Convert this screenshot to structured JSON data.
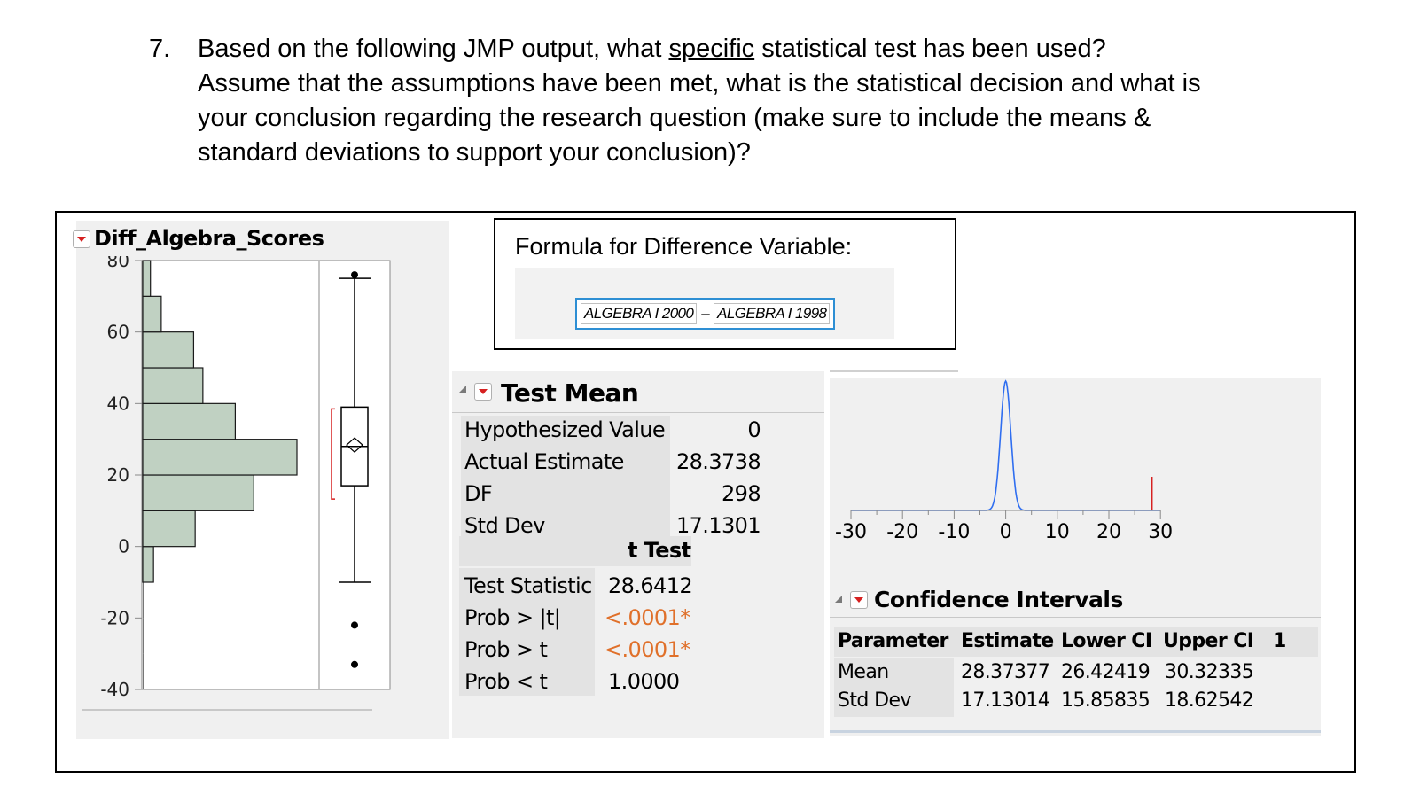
{
  "question": {
    "number": "7.",
    "line1_before": "Based on the following JMP output, what ",
    "line1_underlined": "specific",
    "line1_after": " statistical test has been used?",
    "line2": "Assume that the assumptions have been met, what is the statistical decision and what is",
    "line3": "your conclusion regarding the research question (make sure to include the means &",
    "line4": "standard deviations to support your conclusion)?"
  },
  "histogram_panel": {
    "title": "Diff_Algebra_Scores",
    "y_ticks": [
      "80",
      "60",
      "40",
      "20",
      "0",
      "-20",
      "-40"
    ]
  },
  "formula": {
    "title": "Formula for Difference Variable:",
    "term1": "ALGEBRA I 2000",
    "operator": "–",
    "term2": "ALGEBRA I 1998"
  },
  "test_mean": {
    "title": "Test Mean",
    "rows": [
      {
        "label": "Hypothesized Value",
        "value": "0"
      },
      {
        "label": "Actual Estimate",
        "value": "28.3738"
      },
      {
        "label": "DF",
        "value": "298"
      },
      {
        "label": "Std Dev",
        "value": "17.1301"
      }
    ],
    "t_test_header": "t Test",
    "t_rows": [
      {
        "label": "Test Statistic",
        "value": "28.6412"
      },
      {
        "label": "Prob > |t|",
        "value": "<.0001*"
      },
      {
        "label": "Prob > t",
        "value": "<.0001*"
      },
      {
        "label": "Prob < t",
        "value": "1.0000"
      }
    ]
  },
  "density_axis": {
    "ticks": [
      "-30",
      "-20",
      "-10",
      "0",
      "10",
      "20",
      "30"
    ]
  },
  "confidence_intervals": {
    "title": "Confidence Intervals",
    "headers": [
      "Parameter",
      "Estimate",
      "Lower CI",
      "Upper CI",
      "1"
    ],
    "rows": [
      [
        "Mean",
        "28.37377",
        "26.42419",
        "30.32335"
      ],
      [
        "Std Dev",
        "17.13014",
        "15.85835",
        "18.62542"
      ]
    ]
  },
  "colors": {
    "histogram_bar": "#c0d1c2",
    "density_curve": "#2f6ef0",
    "estimate_marker": "#d62020",
    "pvalue_text": "#e0702a"
  },
  "chart_data": {
    "type": "bar",
    "title": "Diff_Algebra_Scores",
    "bins": [
      {
        "from": -40,
        "to": -30,
        "rel_length": 0.0
      },
      {
        "from": -30,
        "to": -20,
        "rel_length": 0.0
      },
      {
        "from": -20,
        "to": -10,
        "rel_length": 0.0
      },
      {
        "from": -10,
        "to": 0,
        "rel_length": 0.07
      },
      {
        "from": 0,
        "to": 10,
        "rel_length": 0.34
      },
      {
        "from": 10,
        "to": 20,
        "rel_length": 0.72
      },
      {
        "from": 20,
        "to": 30,
        "rel_length": 1.0
      },
      {
        "from": 30,
        "to": 40,
        "rel_length": 0.6
      },
      {
        "from": 40,
        "to": 50,
        "rel_length": 0.39
      },
      {
        "from": 50,
        "to": 60,
        "rel_length": 0.33
      },
      {
        "from": 60,
        "to": 70,
        "rel_length": 0.12
      },
      {
        "from": 70,
        "to": 80,
        "rel_length": 0.05
      }
    ],
    "ylim": [
      -40,
      80
    ],
    "boxplot": {
      "min": -10,
      "q1": 17,
      "median": 28,
      "q3": 39,
      "max": 75,
      "mean": 28.4,
      "outliers": [
        -22,
        -33,
        76
      ]
    }
  }
}
